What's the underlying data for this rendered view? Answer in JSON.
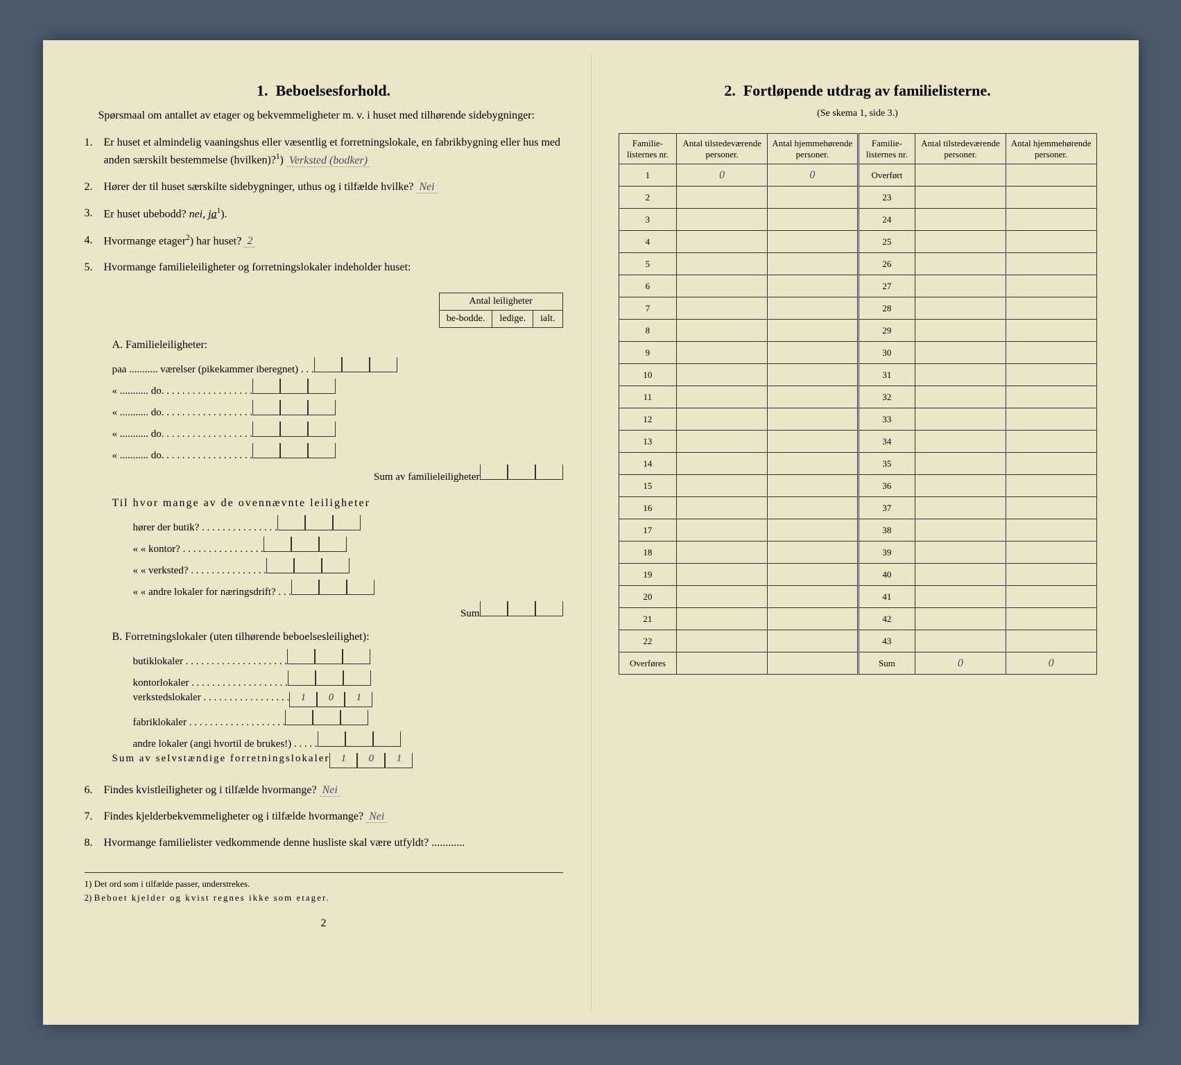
{
  "left": {
    "heading_num": "1.",
    "heading": "Beboelsesforhold.",
    "intro": "Spørsmaal om antallet av etager og bekvemmeligheter m. v. i huset med tilhørende sidebygninger:",
    "q1": {
      "num": "1.",
      "text_a": "Er huset et almindelig vaaningshus eller væsentlig et forretningslokale, en fabrikbygning eller hus med anden særskilt bestemmelse (hvilken)?",
      "sup": "1",
      "answer": "Verksted (bodker)"
    },
    "q2": {
      "num": "2.",
      "text": "Hører der til huset særskilte sidebygninger, uthus og i tilfælde hvilke?",
      "answer": "Nei"
    },
    "q3": {
      "num": "3.",
      "text": "Er huset ubebodd?",
      "options": "nei, ja",
      "sup": "1",
      "answer_underlined": "ja"
    },
    "q4": {
      "num": "4.",
      "text": "Hvormange etager",
      "sup": "2",
      "text_after": ") har huset?",
      "answer": "2"
    },
    "q5": {
      "num": "5.",
      "text": "Hvormange familieleiligheter og forretningslokaler indeholder huset:"
    },
    "table_header": {
      "title": "Antal leiligheter",
      "col1": "be-bodde.",
      "col2": "ledige.",
      "col3": "ialt."
    },
    "sectionA": {
      "label": "A. Familieleiligheter:",
      "rows": [
        "paa ........... værelser (pikekammer iberegnet) . . .",
        "« ........... do. . . . . . . . . . . . . . . . . .",
        "« ........... do. . . . . . . . . . . . . . . . . .",
        "« ........... do. . . . . . . . . . . . . . . . . .",
        "« ........... do. . . . . . . . . . . . . . . . . ."
      ],
      "sum": "Sum av familieleiligheter"
    },
    "sectionA2": {
      "intro": "Til hvor mange av de ovennævnte leiligheter",
      "rows": [
        "hører der butik? . . . . . . . . . . . . . . .",
        "«   «   kontor? . . . . . . . . . . . . . . . .",
        "«   «   verksted? . . . . . . . . . . . . . . .",
        "«   «   andre lokaler for næringsdrift? . . ."
      ],
      "sum": "Sum"
    },
    "sectionB": {
      "label": "B. Forretningslokaler (uten tilhørende beboelsesleilighet):",
      "rows": [
        {
          "label": "butiklokaler . . . . . . . . . . . . . . . . . . . .",
          "v": [
            "",
            "",
            ""
          ]
        },
        {
          "label": "kontorlokaler . . . . . . . . . . . . . . . . . . .",
          "v": [
            "",
            "",
            ""
          ]
        },
        {
          "label": "verkstedslokaler . . . . . . . . . . . . . . . . .",
          "v": [
            "1",
            "0",
            "1"
          ]
        },
        {
          "label": "fabriklokaler . . . . . . . . . . . . . . . . . . .",
          "v": [
            "",
            "",
            ""
          ]
        },
        {
          "label": "andre lokaler (angi hvortil de brukes!) . . . . .",
          "v": [
            "",
            "",
            ""
          ]
        }
      ],
      "sum_label": "Sum av selvstændige forretningslokaler",
      "sum_v": [
        "1",
        "0",
        "1"
      ]
    },
    "q6": {
      "num": "6.",
      "text": "Findes kvistleiligheter og i tilfælde hvormange?",
      "answer": "Nei"
    },
    "q7": {
      "num": "7.",
      "text": "Findes kjelderbekvemmeligheter og i tilfælde hvormange?",
      "answer": "Nei"
    },
    "q8": {
      "num": "8.",
      "text": "Hvormange familielister vedkommende denne husliste skal være utfyldt? ............"
    },
    "footnotes": {
      "f1": "Det ord som i tilfælde passer, understrekes.",
      "f1_num": "1)",
      "f2": "Beboet kjelder og kvist regnes ikke som etager.",
      "f2_num": "2)"
    },
    "page_num": "2"
  },
  "right": {
    "heading_num": "2.",
    "heading": "Fortløpende utdrag av familielisterne.",
    "subtitle": "(Se skema 1, side 3.)",
    "headers": {
      "col1": "Familie-listernes nr.",
      "col2": "Antal tilstedeværende personer.",
      "col3": "Antal hjemmehørende personer.",
      "col4": "Familie-listernes nr.",
      "col5": "Antal tilstedeværende personer.",
      "col6": "Antal hjemmehørende personer."
    },
    "rows": [
      {
        "l": "1",
        "lv1": "0",
        "lv2": "0",
        "r": "Overført"
      },
      {
        "l": "2",
        "r": "23"
      },
      {
        "l": "3",
        "r": "24"
      },
      {
        "l": "4",
        "r": "25"
      },
      {
        "l": "5",
        "r": "26"
      },
      {
        "l": "6",
        "r": "27"
      },
      {
        "l": "7",
        "r": "28"
      },
      {
        "l": "8",
        "r": "29"
      },
      {
        "l": "9",
        "r": "30"
      },
      {
        "l": "10",
        "r": "31"
      },
      {
        "l": "11",
        "r": "32"
      },
      {
        "l": "12",
        "r": "33"
      },
      {
        "l": "13",
        "r": "34"
      },
      {
        "l": "14",
        "r": "35"
      },
      {
        "l": "15",
        "r": "36"
      },
      {
        "l": "16",
        "r": "37"
      },
      {
        "l": "17",
        "r": "38"
      },
      {
        "l": "18",
        "r": "39"
      },
      {
        "l": "19",
        "r": "40"
      },
      {
        "l": "20",
        "r": "41"
      },
      {
        "l": "21",
        "r": "42"
      },
      {
        "l": "22",
        "r": "43"
      }
    ],
    "footer": {
      "left": "Overføres",
      "right": "Sum",
      "sum_v1": "0",
      "sum_v2": "0"
    }
  },
  "colors": {
    "paper": "#ede5ca",
    "ink": "#1a1a1a",
    "handwriting": "#4a4a5a",
    "background": "#4a5a6a"
  }
}
